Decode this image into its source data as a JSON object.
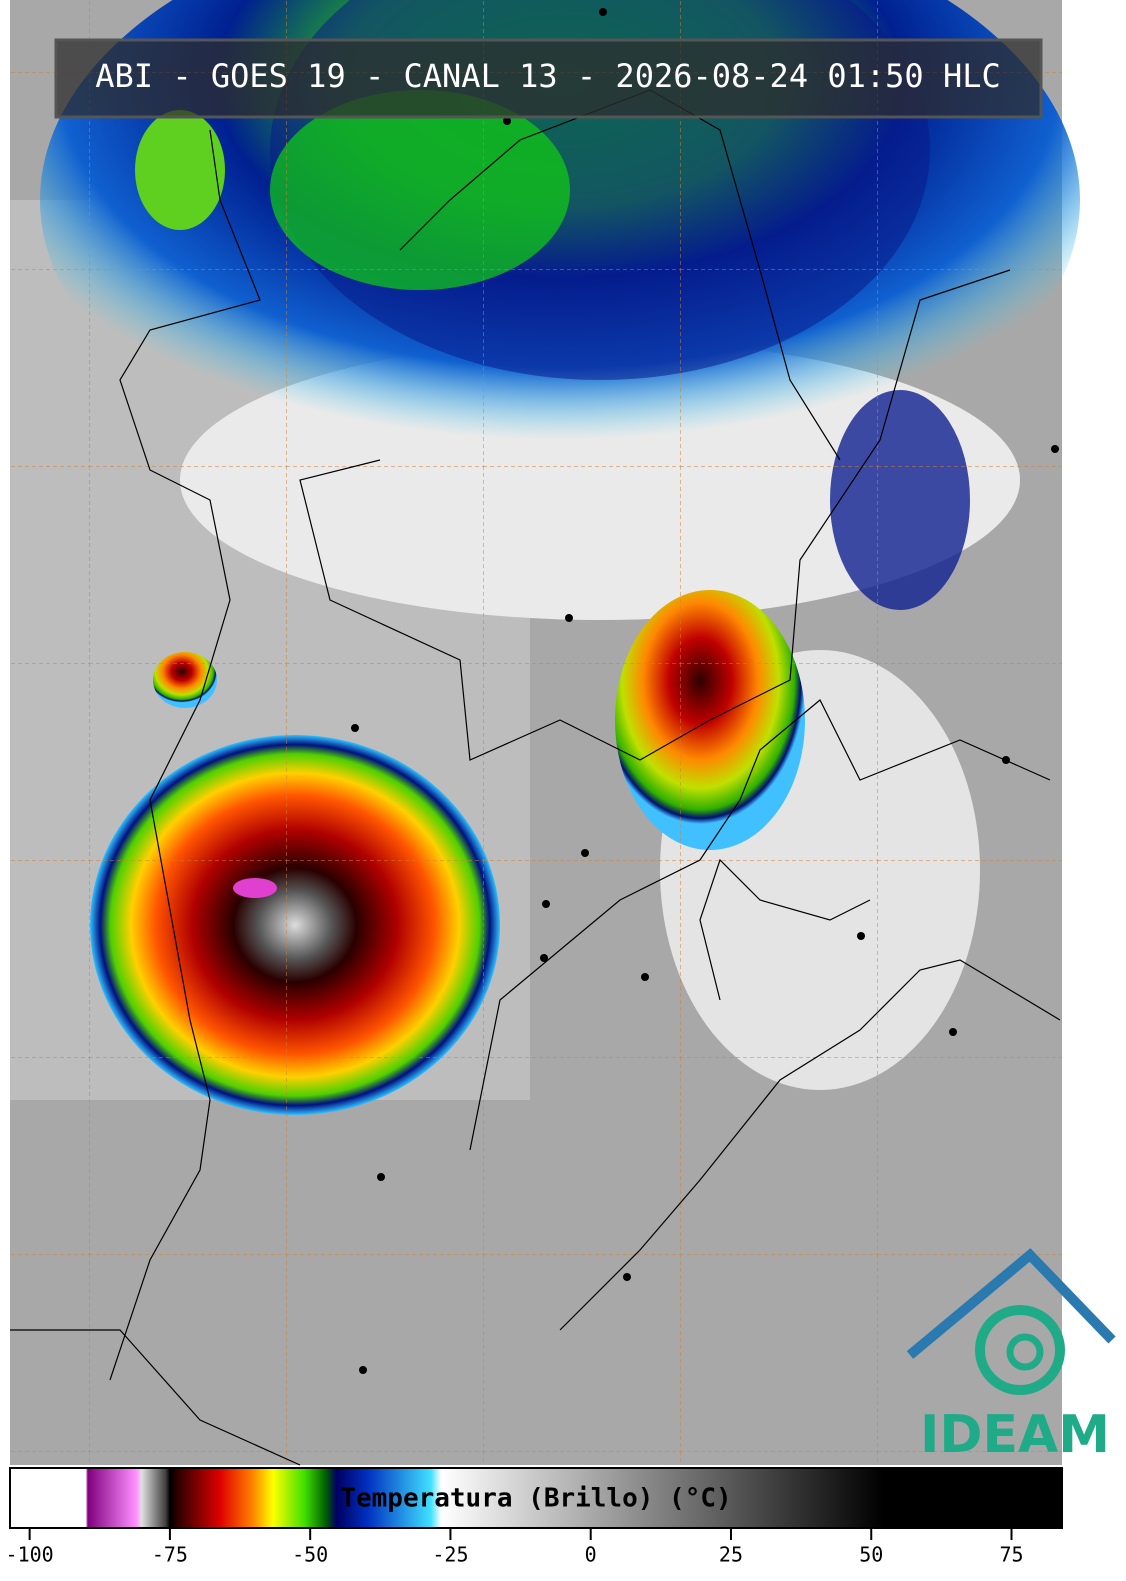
{
  "map": {
    "title": "ABI - GOES 19 - CANAL 13 - 2026-08-24 01:50 HLC",
    "logo": "IDEAM"
  },
  "colorbar": {
    "label": "Temperatura (Brillo) (°C)",
    "lim": [
      -103.5,
      84
    ],
    "ticks": [
      -100,
      -75,
      -50,
      -25,
      0,
      25,
      50,
      75
    ]
  }
}
